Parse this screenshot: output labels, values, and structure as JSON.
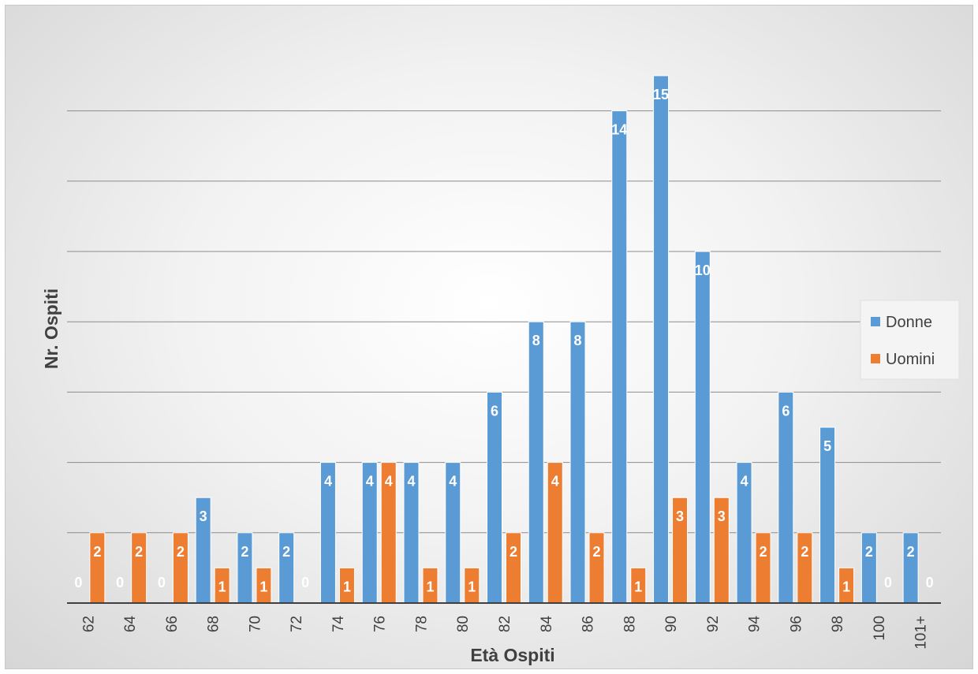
{
  "chart_data": {
    "type": "bar",
    "xlabel": "Età Ospiti",
    "ylabel": "Nr. Ospiti",
    "categories": [
      "62",
      "64",
      "66",
      "68",
      "70",
      "72",
      "74",
      "76",
      "78",
      "80",
      "82",
      "84",
      "86",
      "88",
      "90",
      "92",
      "94",
      "96",
      "98",
      "100",
      "101+"
    ],
    "series": [
      {
        "name": "Donne",
        "color": "#5b9bd5",
        "values": [
          0,
          0,
          0,
          3,
          2,
          2,
          4,
          4,
          4,
          4,
          6,
          8,
          8,
          14,
          15,
          10,
          4,
          6,
          5,
          2,
          2
        ]
      },
      {
        "name": "Uomini",
        "color": "#ed7d31",
        "values": [
          2,
          2,
          2,
          1,
          1,
          0,
          1,
          4,
          1,
          1,
          2,
          4,
          2,
          1,
          3,
          3,
          2,
          2,
          1,
          0,
          0
        ]
      }
    ],
    "ylim": [
      0,
      15
    ],
    "grid": true,
    "gridline_step": 2,
    "legend_position": "right",
    "data_labels": true
  }
}
